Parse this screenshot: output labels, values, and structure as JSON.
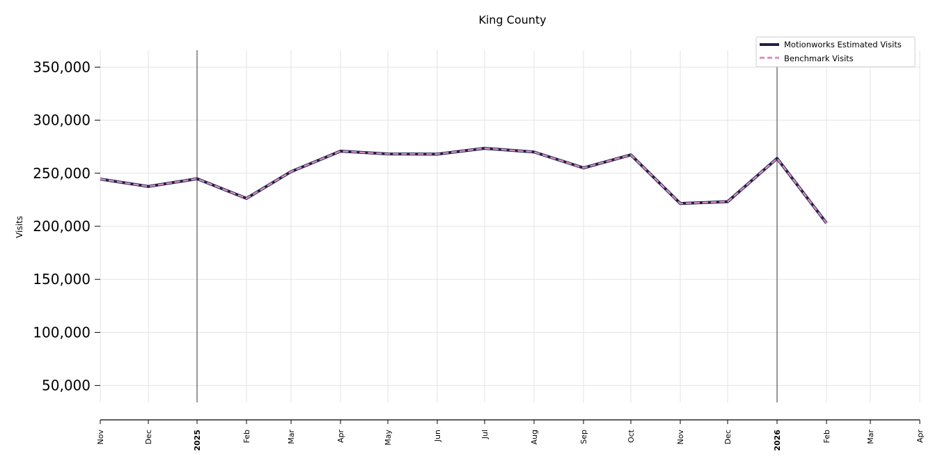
{
  "chart_data": {
    "type": "line",
    "title": "King County",
    "xlabel": "",
    "ylabel": "Visits",
    "x": [
      "Nov",
      "Dec",
      "2025",
      "Feb",
      "Mar",
      "Apr",
      "May",
      "Jun",
      "Jul",
      "Aug",
      "Sep",
      "Oct",
      "Nov",
      "Dec",
      "2026",
      "Feb"
    ],
    "x_tick_labels": [
      "Nov",
      "Dec",
      "2025",
      "Feb",
      "Mar",
      "Apr",
      "May",
      "Jun",
      "Jul",
      "Aug",
      "Sep",
      "Oct",
      "Nov",
      "Dec",
      "2026",
      "Feb",
      "Mar",
      "Apr"
    ],
    "x_year_labels": [
      "2025",
      "2026"
    ],
    "y_ticks": [
      50000,
      100000,
      150000,
      200000,
      250000,
      300000,
      350000
    ],
    "y_tick_labels": [
      "50,000",
      "100,000",
      "150,000",
      "200,000",
      "250,000",
      "300,000",
      "350,000"
    ],
    "ylim": [
      34000,
      366000
    ],
    "grid": true,
    "legend_position": "top-right",
    "series": [
      {
        "name": "Motionworks Estimated Visits",
        "color": "#1f2148",
        "style": "solid",
        "values": [
          244500,
          237500,
          244800,
          226300,
          251500,
          270800,
          268200,
          268000,
          273500,
          270000,
          255000,
          267300,
          221500,
          223200,
          264000,
          203000
        ]
      },
      {
        "name": "Benchmark Visits",
        "color": "#d98fbf",
        "style": "dashed",
        "values": [
          244500,
          237500,
          244800,
          226300,
          251500,
          270800,
          268200,
          268000,
          273500,
          270000,
          255000,
          267300,
          221500,
          223200,
          264000,
          203000
        ]
      }
    ]
  }
}
